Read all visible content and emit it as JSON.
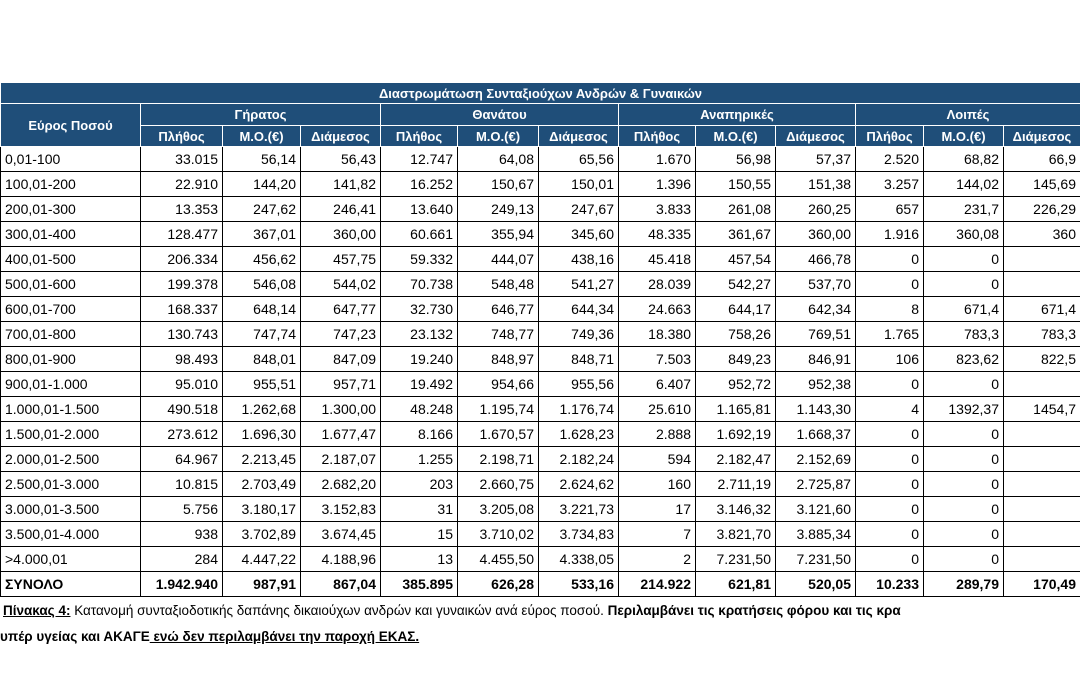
{
  "table": {
    "title": "Διαστρωμάτωση Συνταξιούχων Ανδρών & Γυναικών",
    "row_header": "Εύρος Ποσού",
    "groups": [
      {
        "name": "Γήρατος",
        "columns": [
          "Πλήθος",
          "Μ.Ο.(€)",
          "Διάμεσος"
        ]
      },
      {
        "name": "Θανάτου",
        "columns": [
          "Πλήθος",
          "Μ.Ο.(€)",
          "Διάμεσος"
        ]
      },
      {
        "name": "Αναπηρικές",
        "columns": [
          "Πλήθος",
          "Μ.Ο.(€)",
          "Διάμεσος"
        ]
      },
      {
        "name": "Λοιπές",
        "columns": [
          "Πλήθος",
          "Μ.Ο.(€)",
          "Διάμεσος"
        ]
      }
    ],
    "rows": [
      [
        "0,01-100",
        "33.015",
        "56,14",
        "56,43",
        "12.747",
        "64,08",
        "65,56",
        "1.670",
        "56,98",
        "57,37",
        "2.520",
        "68,82",
        "66,9"
      ],
      [
        "100,01-200",
        "22.910",
        "144,20",
        "141,82",
        "16.252",
        "150,67",
        "150,01",
        "1.396",
        "150,55",
        "151,38",
        "3.257",
        "144,02",
        "145,69"
      ],
      [
        "200,01-300",
        "13.353",
        "247,62",
        "246,41",
        "13.640",
        "249,13",
        "247,67",
        "3.833",
        "261,08",
        "260,25",
        "657",
        "231,7",
        "226,29"
      ],
      [
        "300,01-400",
        "128.477",
        "367,01",
        "360,00",
        "60.661",
        "355,94",
        "345,60",
        "48.335",
        "361,67",
        "360,00",
        "1.916",
        "360,08",
        "360"
      ],
      [
        "400,01-500",
        "206.334",
        "456,62",
        "457,75",
        "59.332",
        "444,07",
        "438,16",
        "45.418",
        "457,54",
        "466,78",
        "0",
        "0",
        null
      ],
      [
        "500,01-600",
        "199.378",
        "546,08",
        "544,02",
        "70.738",
        "548,48",
        "541,27",
        "28.039",
        "542,27",
        "537,70",
        "0",
        "0",
        null
      ],
      [
        "600,01-700",
        "168.337",
        "648,14",
        "647,77",
        "32.730",
        "646,77",
        "644,34",
        "24.663",
        "644,17",
        "642,34",
        "8",
        "671,4",
        "671,4"
      ],
      [
        "700,01-800",
        "130.743",
        "747,74",
        "747,23",
        "23.132",
        "748,77",
        "749,36",
        "18.380",
        "758,26",
        "769,51",
        "1.765",
        "783,3",
        "783,3"
      ],
      [
        "800,01-900",
        "98.493",
        "848,01",
        "847,09",
        "19.240",
        "848,97",
        "848,71",
        "7.503",
        "849,23",
        "846,91",
        "106",
        "823,62",
        "822,5"
      ],
      [
        "900,01-1.000",
        "95.010",
        "955,51",
        "957,71",
        "19.492",
        "954,66",
        "955,56",
        "6.407",
        "952,72",
        "952,38",
        "0",
        "0",
        null
      ],
      [
        "1.000,01-1.500",
        "490.518",
        "1.262,68",
        "1.300,00",
        "48.248",
        "1.195,74",
        "1.176,74",
        "25.610",
        "1.165,81",
        "1.143,30",
        "4",
        "1392,37",
        "1454,7"
      ],
      [
        "1.500,01-2.000",
        "273.612",
        "1.696,30",
        "1.677,47",
        "8.166",
        "1.670,57",
        "1.628,23",
        "2.888",
        "1.692,19",
        "1.668,37",
        "0",
        "0",
        null
      ],
      [
        "2.000,01-2.500",
        "64.967",
        "2.213,45",
        "2.187,07",
        "1.255",
        "2.198,71",
        "2.182,24",
        "594",
        "2.182,47",
        "2.152,69",
        "0",
        "0",
        null
      ],
      [
        "2.500,01-3.000",
        "10.815",
        "2.703,49",
        "2.682,20",
        "203",
        "2.660,75",
        "2.624,62",
        "160",
        "2.711,19",
        "2.725,87",
        "0",
        "0",
        null
      ],
      [
        "3.000,01-3.500",
        "5.756",
        "3.180,17",
        "3.152,83",
        "31",
        "3.205,08",
        "3.221,73",
        "17",
        "3.146,32",
        "3.121,60",
        "0",
        "0",
        null
      ],
      [
        "3.500,01-4.000",
        "938",
        "3.702,89",
        "3.674,45",
        "15",
        "3.710,02",
        "3.734,83",
        "7",
        "3.821,70",
        "3.885,34",
        "0",
        "0",
        null
      ],
      [
        ">4.000,01",
        "284",
        "4.447,22",
        "4.188,96",
        "13",
        "4.455,50",
        "4.338,05",
        "2",
        "7.231,50",
        "7.231,50",
        "0",
        "0",
        null
      ]
    ],
    "total": [
      "ΣΥΝΟΛΟ",
      "1.942.940",
      "987,91",
      "867,04",
      "385.895",
      "626,28",
      "533,16",
      "214.922",
      "621,81",
      "520,05",
      "10.233",
      "289,79",
      "170,49"
    ]
  },
  "caption": {
    "line1": {
      "label": "Πίνακας 4:",
      "text": " Κατανομή συνταξιοδοτικής δαπάνης δικαιούχων ανδρών και γυναικών ανά εύρος ποσού. ",
      "bold": "Περιλαμβάνει τις κρατήσεις φόρου και τις κρα"
    },
    "line2": {
      "bold": "υπέρ υγείας και ΑΚΑΓΕ",
      "underlined": " ενώ δεν περιλαμβάνει την παροχή ΕΚΑΣ."
    }
  }
}
